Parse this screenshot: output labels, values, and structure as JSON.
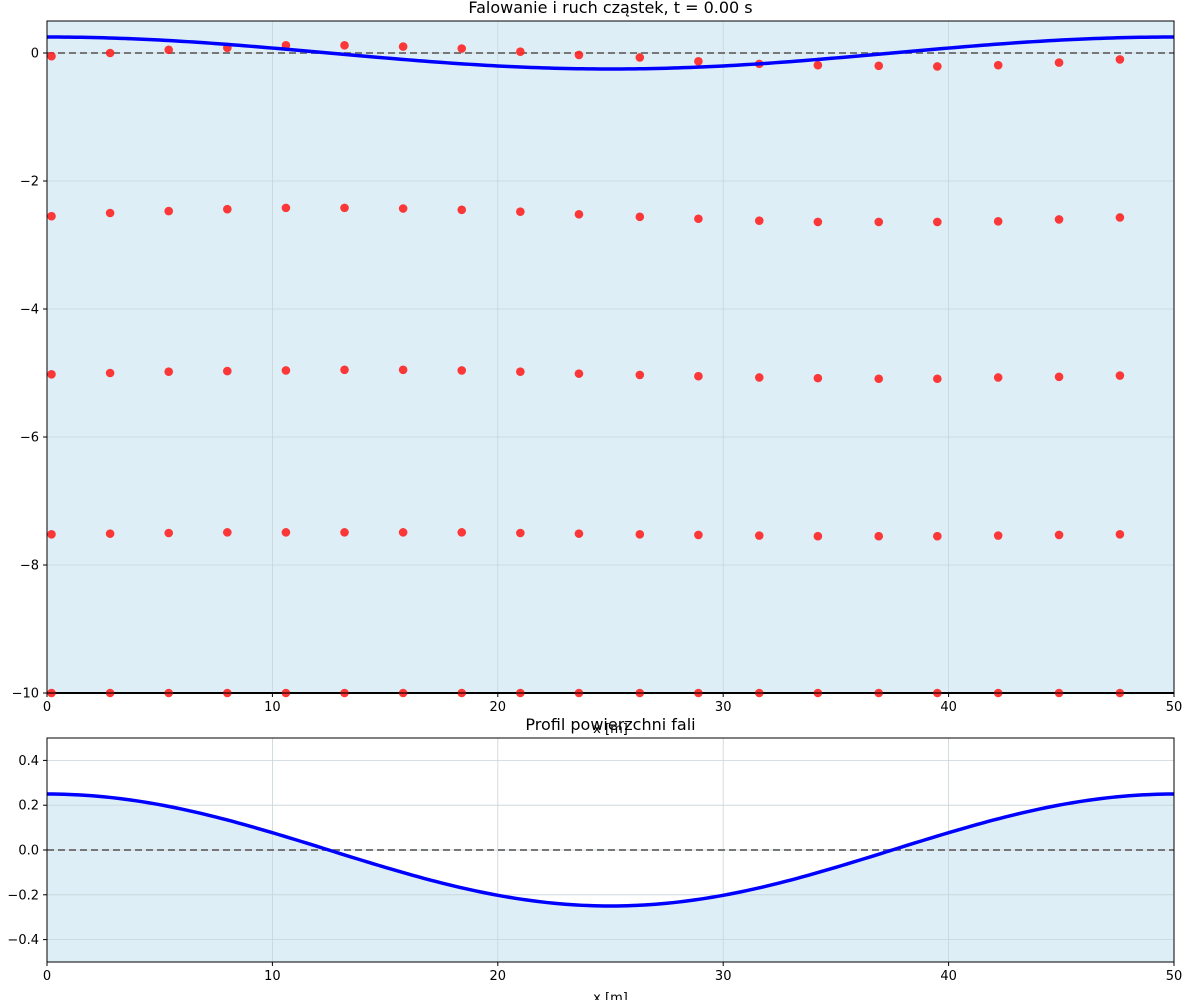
{
  "chart_data": [
    {
      "type": "scatter",
      "title": "Falowanie i ruch cząstek, t = 0.00 s",
      "xlabel": "x [m]",
      "ylabel": "",
      "xlim": [
        0,
        50
      ],
      "ylim": [
        -10,
        0.5
      ],
      "xticks": [
        0,
        10,
        20,
        30,
        40,
        50
      ],
      "yticks": [
        0,
        -2,
        -4,
        -6,
        -8,
        -10
      ],
      "xtick_labels": [
        "0",
        "10",
        "20",
        "30",
        "40",
        "50"
      ],
      "ytick_labels": [
        "0",
        "−2",
        "−4",
        "−6",
        "−8",
        "−10"
      ],
      "grid": true,
      "water_depth": -10,
      "wave": {
        "amplitude": 0.25,
        "wavelength": 50,
        "x_start": 0,
        "x_end": 50
      },
      "mean_level": 0,
      "particle_x": [
        0.2,
        2.8,
        5.4,
        8.0,
        10.6,
        13.2,
        15.8,
        18.4,
        21.0,
        23.6,
        26.3,
        28.9,
        31.6,
        34.2,
        36.9,
        39.5,
        42.2,
        44.9,
        47.6
      ],
      "particle_rows": [
        {
          "depth": 0,
          "y": [
            -0.05,
            0.0,
            0.05,
            0.08,
            0.12,
            0.12,
            0.1,
            0.07,
            0.02,
            -0.03,
            -0.07,
            -0.13,
            -0.17,
            -0.19,
            -0.2,
            -0.21,
            -0.19,
            -0.15,
            -0.1
          ]
        },
        {
          "depth": -2.5,
          "y": [
            -2.55,
            -2.5,
            -2.47,
            -2.44,
            -2.42,
            -2.42,
            -2.43,
            -2.45,
            -2.48,
            -2.52,
            -2.56,
            -2.59,
            -2.62,
            -2.64,
            -2.64,
            -2.64,
            -2.63,
            -2.6,
            -2.57
          ]
        },
        {
          "depth": -5,
          "y": [
            -5.02,
            -5.0,
            -4.98,
            -4.97,
            -4.96,
            -4.95,
            -4.95,
            -4.96,
            -4.98,
            -5.01,
            -5.03,
            -5.05,
            -5.07,
            -5.08,
            -5.09,
            -5.09,
            -5.07,
            -5.06,
            -5.04
          ]
        },
        {
          "depth": -7.5,
          "y": [
            -7.52,
            -7.51,
            -7.5,
            -7.49,
            -7.49,
            -7.49,
            -7.49,
            -7.49,
            -7.5,
            -7.51,
            -7.52,
            -7.53,
            -7.54,
            -7.55,
            -7.55,
            -7.55,
            -7.54,
            -7.53,
            -7.52
          ]
        },
        {
          "depth": -10,
          "y": [
            -10,
            -10,
            -10,
            -10,
            -10,
            -10,
            -10,
            -10,
            -10,
            -10,
            -10,
            -10,
            -10,
            -10,
            -10,
            -10,
            -10,
            -10,
            -10
          ]
        }
      ],
      "colors": {
        "water": "#ddeef6",
        "wave": "#0000ff",
        "particle": "#ff2222",
        "mean_line": "#777777"
      }
    },
    {
      "type": "line",
      "title": "Profil powierzchni fali",
      "xlabel": "x [m]",
      "ylabel": "",
      "xlim": [
        0,
        50
      ],
      "ylim": [
        -0.5,
        0.5
      ],
      "xticks": [
        0,
        10,
        20,
        30,
        40,
        50
      ],
      "yticks": [
        0.4,
        0.2,
        0.0,
        -0.2,
        -0.4
      ],
      "xtick_labels": [
        "0",
        "10",
        "20",
        "30",
        "40",
        "50"
      ],
      "ytick_labels": [
        "0.4",
        "0.2",
        "0.0",
        "−0.2",
        "−0.4"
      ],
      "grid": true,
      "wave": {
        "amplitude": 0.25,
        "wavelength": 50,
        "x_start": 0,
        "x_end": 50
      },
      "mean_level": 0,
      "colors": {
        "water": "#ddeef6",
        "wave": "#0000ff",
        "mean_line": "#777777"
      }
    }
  ]
}
